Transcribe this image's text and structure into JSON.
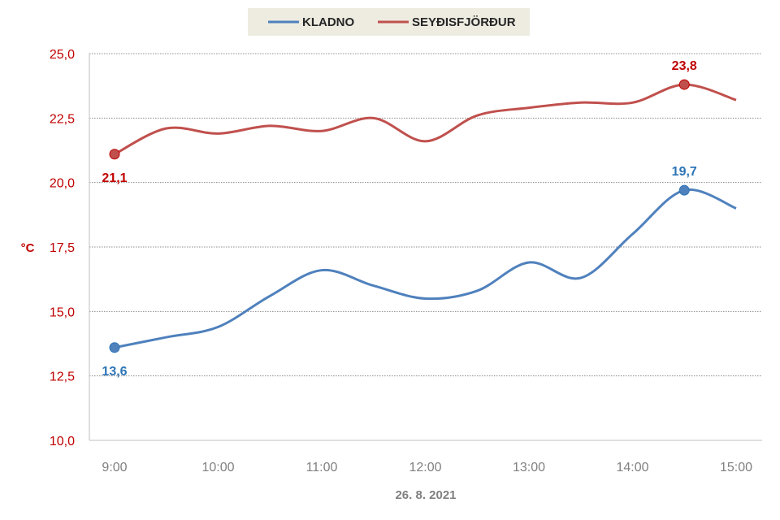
{
  "chart_data": {
    "type": "line",
    "xlabel": "26. 8. 2021",
    "ylabel": "°C",
    "ylim": [
      10,
      25
    ],
    "yticks": [
      "10,0",
      "12,5",
      "15,0",
      "17,5",
      "20,0",
      "22,5",
      "25,0"
    ],
    "xlim": [
      8.75,
      15.0
    ],
    "xticks": [
      "9:00",
      "10:00",
      "11:00",
      "12:00",
      "13:00",
      "14:00",
      "15:00"
    ],
    "grid": true,
    "legend_position": "top",
    "series": [
      {
        "name": "KLADNO",
        "color": "#4f81bd",
        "label_color": "#2e75b6",
        "x": [
          9.0,
          9.5,
          10.0,
          10.5,
          11.0,
          11.5,
          12.0,
          12.5,
          13.0,
          13.5,
          14.0,
          14.5,
          15.0
        ],
        "y": [
          13.6,
          14.0,
          14.4,
          15.6,
          16.6,
          16.0,
          15.5,
          15.8,
          16.9,
          16.3,
          18.0,
          19.7,
          19.0
        ],
        "labels": [
          {
            "index": 0,
            "text": "13,6",
            "pos": "below"
          },
          {
            "index": 11,
            "text": "19,7",
            "pos": "above"
          }
        ]
      },
      {
        "name": "SEYÐISFJÖRÐUR",
        "color": "#c0504d",
        "label_color": "#c00000",
        "x": [
          9.0,
          9.5,
          10.0,
          10.5,
          11.0,
          11.5,
          12.0,
          12.5,
          13.0,
          13.5,
          14.0,
          14.5,
          15.0
        ],
        "y": [
          21.1,
          22.1,
          21.9,
          22.2,
          22.0,
          22.5,
          21.6,
          22.6,
          22.9,
          23.1,
          23.1,
          23.8,
          23.2
        ],
        "labels": [
          {
            "index": 0,
            "text": "21,1",
            "pos": "below"
          },
          {
            "index": 11,
            "text": "23,8",
            "pos": "above"
          }
        ]
      }
    ]
  }
}
